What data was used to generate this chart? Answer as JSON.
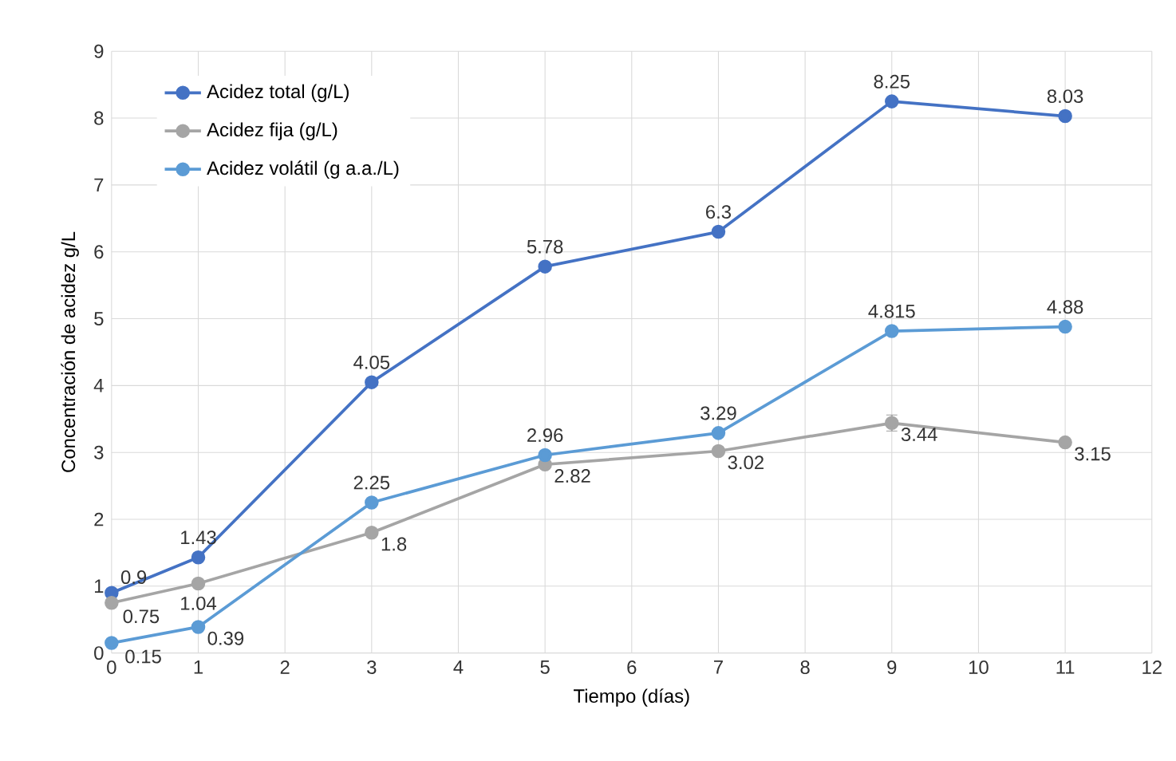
{
  "chart_data": {
    "type": "line",
    "xlabel": "Tiempo (días)",
    "ylabel": "Concentración de acidez g/L",
    "x": [
      0,
      1,
      3,
      5,
      7,
      9,
      11
    ],
    "series": [
      {
        "name": "Acidez total (g/L)",
        "color": "#4472c4",
        "values": [
          0.9,
          1.43,
          4.05,
          5.78,
          6.3,
          8.25,
          8.03
        ]
      },
      {
        "name": "Acidez fija (g/L)",
        "color": "#a5a5a5",
        "values": [
          0.75,
          1.04,
          1.8,
          2.82,
          3.02,
          3.44,
          3.15
        ],
        "errors": [
          null,
          null,
          null,
          null,
          null,
          0.12,
          null
        ]
      },
      {
        "name": "Acidez volátil (g a.a./L)",
        "color": "#5b9bd5",
        "values": [
          0.15,
          0.39,
          2.25,
          2.96,
          3.29,
          4.815,
          4.88
        ]
      }
    ],
    "xlim": [
      0,
      12
    ],
    "xticks": [
      0,
      1,
      2,
      3,
      4,
      5,
      6,
      7,
      8,
      9,
      10,
      11,
      12
    ],
    "ylim": [
      0,
      9
    ],
    "yticks": [
      0,
      1,
      2,
      3,
      4,
      5,
      6,
      7,
      8,
      9
    ],
    "grid": true,
    "legend": "top left",
    "marker": "circle",
    "line_style": "solid",
    "data_labels": true
  }
}
